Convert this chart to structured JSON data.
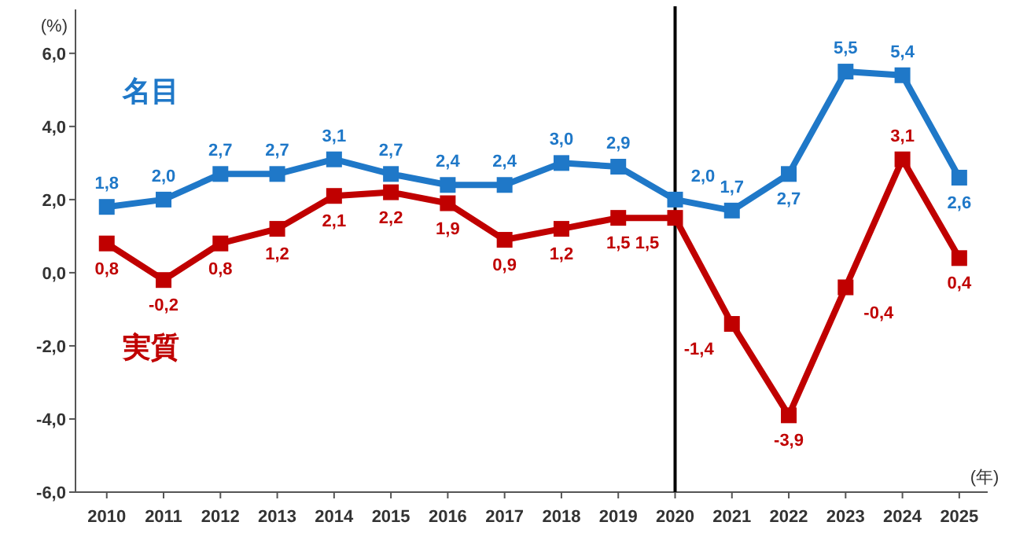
{
  "chart_data": {
    "type": "line",
    "ylabel": "(%)",
    "xlabel": "(年)",
    "x": [
      2010,
      2011,
      2012,
      2013,
      2014,
      2015,
      2016,
      2017,
      2018,
      2019,
      2020,
      2021,
      2022,
      2023,
      2024,
      2025
    ],
    "xlim": [
      2009.45,
      2025.5
    ],
    "xticks": [
      2010,
      2011,
      2012,
      2013,
      2014,
      2015,
      2016,
      2017,
      2018,
      2019,
      2020,
      2021,
      2022,
      2023,
      2024,
      2025
    ],
    "ylim": [
      -6,
      7.2
    ],
    "yticks": [
      {
        "value": -6,
        "label": "-6,0"
      },
      {
        "value": -4,
        "label": "-4,0"
      },
      {
        "value": -2,
        "label": "-2,0"
      },
      {
        "value": 0,
        "label": "0,0"
      },
      {
        "value": 2,
        "label": "2,0"
      },
      {
        "value": 4,
        "label": "4,0"
      },
      {
        "value": 6,
        "label": "6,0"
      }
    ],
    "marker": "square",
    "grid": false,
    "ref_lines": [
      {
        "axis": "x",
        "value": 2020,
        "color": "#000000"
      }
    ],
    "series": [
      {
        "name": "名目",
        "color": "#1f78c8",
        "values": [
          1.8,
          2.0,
          2.7,
          2.7,
          3.1,
          2.7,
          2.4,
          2.4,
          3.0,
          2.9,
          2.0,
          1.7,
          2.7,
          5.5,
          5.4,
          2.6
        ],
        "value_labels": [
          "1,8",
          "2,0",
          "2,7",
          "2,7",
          "3,1",
          "2,7",
          "2,4",
          "2,4",
          "3,0",
          "2,9",
          "2,0",
          "1,7",
          "2,7",
          "5,5",
          "5,4",
          "2,6"
        ]
      },
      {
        "name": "実質",
        "color": "#c00000",
        "values": [
          0.8,
          -0.2,
          0.8,
          1.2,
          2.1,
          2.2,
          1.9,
          0.9,
          1.2,
          1.5,
          1.5,
          -1.4,
          -3.9,
          -0.4,
          3.1,
          0.4
        ],
        "value_labels": [
          "0,8",
          "-0,2",
          "0,8",
          "1,2",
          "2,1",
          "2,2",
          "1,9",
          "0,9",
          "1,2",
          "1,5",
          "1,5",
          "-1,4",
          "-3,9",
          "-0,4",
          "3,1",
          "0,4"
        ]
      }
    ]
  }
}
